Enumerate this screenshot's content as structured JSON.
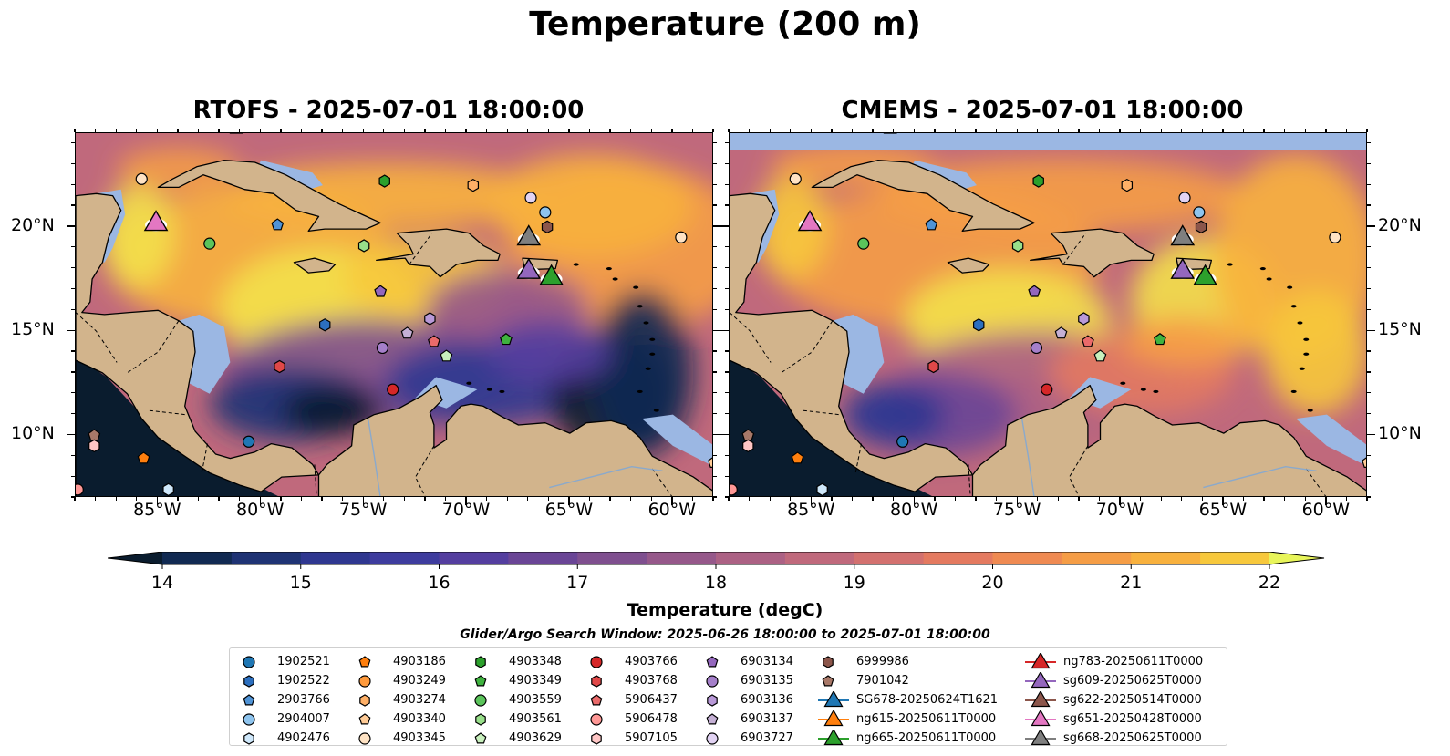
{
  "suptitle": "Temperature (200 m)",
  "panels": [
    {
      "title": "RTOFS - 2025-07-01 18:00:00"
    },
    {
      "title": "CMEMS - 2025-07-01 18:00:00"
    }
  ],
  "map_extent": {
    "lon_min": -89.0,
    "lon_max": -58.0,
    "lat_min": 7.0,
    "lat_max": 24.5
  },
  "x_ticks": [
    {
      "label": "85°W",
      "lon": -85
    },
    {
      "label": "80°W",
      "lon": -80
    },
    {
      "label": "75°W",
      "lon": -75
    },
    {
      "label": "70°W",
      "lon": -70
    },
    {
      "label": "65°W",
      "lon": -65
    },
    {
      "label": "60°W",
      "lon": -60
    }
  ],
  "y_ticks": [
    {
      "label": "20°N",
      "lat": 20
    },
    {
      "label": "15°N",
      "lat": 15
    },
    {
      "label": "10°N",
      "lat": 10
    }
  ],
  "colors": {
    "land": "#d2b48c",
    "shallow": "#9bb7e3",
    "colormap": [
      "#0a1c2e",
      "#112a52",
      "#1f3374",
      "#2f3790",
      "#3e3c9e",
      "#543e9f",
      "#6a4596",
      "#7f4f8f",
      "#96588a",
      "#ac6184",
      "#c0697c",
      "#d3716f",
      "#e47a60",
      "#ef8a52",
      "#f59d46",
      "#f8b13e",
      "#f7c83c",
      "#f3e04a",
      "#e8f55a"
    ]
  },
  "colorbar": {
    "label": "Temperature (degC)",
    "vmin": 14,
    "vmax": 22,
    "step": 0.5,
    "ticks": [
      "14",
      "15",
      "16",
      "17",
      "18",
      "19",
      "20",
      "21",
      "22"
    ]
  },
  "search_window": "Glider/Argo Search Window: 2025-06-26 18:00:00 to 2025-07-01 18:00:00",
  "legend": [
    {
      "label": "1902521",
      "marker": "circle",
      "color": "#1f77b4"
    },
    {
      "label": "1902522",
      "marker": "hexagon",
      "color": "#2c6fbf"
    },
    {
      "label": "2903766",
      "marker": "pentagon",
      "color": "#4f93d6"
    },
    {
      "label": "2904007",
      "marker": "circle",
      "color": "#8ec4ee"
    },
    {
      "label": "4902476",
      "marker": "hexagon",
      "color": "#cfe8fb"
    },
    {
      "label": "4903186",
      "marker": "pentagon",
      "color": "#ff7f0e"
    },
    {
      "label": "4903249",
      "marker": "circle",
      "color": "#ff9a3c"
    },
    {
      "label": "4903274",
      "marker": "hexagon",
      "color": "#ffb067"
    },
    {
      "label": "4903340",
      "marker": "pentagon",
      "color": "#ffcb96"
    },
    {
      "label": "4903345",
      "marker": "circle",
      "color": "#ffe3c4"
    },
    {
      "label": "4903348",
      "marker": "hexagon",
      "color": "#2ca02c"
    },
    {
      "label": "4903349",
      "marker": "pentagon",
      "color": "#3fb23f"
    },
    {
      "label": "4903559",
      "marker": "circle",
      "color": "#5bc45b"
    },
    {
      "label": "4903561",
      "marker": "hexagon",
      "color": "#98df8a"
    },
    {
      "label": "4903629",
      "marker": "pentagon",
      "color": "#c8f0bd"
    },
    {
      "label": "4903766",
      "marker": "circle",
      "color": "#d62728"
    },
    {
      "label": "4903768",
      "marker": "hexagon",
      "color": "#e04848"
    },
    {
      "label": "5906437",
      "marker": "pentagon",
      "color": "#ea6a6a"
    },
    {
      "label": "5906478",
      "marker": "circle",
      "color": "#ff9896"
    },
    {
      "label": "5907105",
      "marker": "hexagon",
      "color": "#ffc6c5"
    },
    {
      "label": "6903134",
      "marker": "pentagon",
      "color": "#9467bd"
    },
    {
      "label": "6903135",
      "marker": "circle",
      "color": "#a57fca"
    },
    {
      "label": "6903136",
      "marker": "hexagon",
      "color": "#b999d8"
    },
    {
      "label": "6903137",
      "marker": "pentagon",
      "color": "#c5b0d5"
    },
    {
      "label": "6903727",
      "marker": "circle",
      "color": "#e2d3f3"
    },
    {
      "label": "6999986",
      "marker": "hexagon",
      "color": "#8c564b"
    },
    {
      "label": "7901042",
      "marker": "pentagon",
      "color": "#a87868"
    },
    {
      "label": "SG678-20250624T1621",
      "marker": "triangle",
      "color": "#1f77b4"
    },
    {
      "label": "ng615-20250611T0000",
      "marker": "triangle",
      "color": "#ff7f0e"
    },
    {
      "label": "ng665-20250611T0000",
      "marker": "triangle",
      "color": "#2ca02c"
    },
    {
      "label": "ng783-20250611T0000",
      "marker": "triangle",
      "color": "#d62728"
    },
    {
      "label": "sg609-20250625T0000",
      "marker": "triangle",
      "color": "#9467bd"
    },
    {
      "label": "sg622-20250514T0000",
      "marker": "triangle",
      "color": "#8c564b"
    },
    {
      "label": "sg651-20250428T0000",
      "marker": "triangle",
      "color": "#e377c2"
    },
    {
      "label": "sg668-20250625T0000",
      "marker": "triangle",
      "color": "#7f7f7f"
    }
  ],
  "observations": [
    {
      "label": "2903766",
      "lon": -79.2,
      "lat": 20.1
    },
    {
      "label": "4903348",
      "lon": -74.0,
      "lat": 22.2
    },
    {
      "label": "4903559",
      "lon": -82.5,
      "lat": 19.2
    },
    {
      "label": "4903274",
      "lon": -69.7,
      "lat": 22.0
    },
    {
      "label": "4903345",
      "lon": -85.8,
      "lat": 22.3
    },
    {
      "label": "6903727",
      "lon": -66.9,
      "lat": 21.4
    },
    {
      "label": "2904007",
      "lon": -66.2,
      "lat": 20.7
    },
    {
      "label": "6999986",
      "lon": -66.1,
      "lat": 20.0
    },
    {
      "label": "4903561",
      "lon": -75.0,
      "lat": 19.1
    },
    {
      "label": "4903345",
      "lon": -59.6,
      "lat": 19.5
    },
    {
      "label": "6903134",
      "lon": -74.2,
      "lat": 16.9
    },
    {
      "label": "1902522",
      "lon": -76.9,
      "lat": 15.3
    },
    {
      "label": "6903136",
      "lon": -71.8,
      "lat": 15.6
    },
    {
      "label": "6903137",
      "lon": -72.9,
      "lat": 14.9
    },
    {
      "label": "6903135",
      "lon": -74.1,
      "lat": 14.2
    },
    {
      "label": "5906437",
      "lon": -71.6,
      "lat": 14.5
    },
    {
      "label": "4903349",
      "lon": -68.1,
      "lat": 14.6
    },
    {
      "label": "4903629",
      "lon": -71.0,
      "lat": 13.8
    },
    {
      "label": "4903768",
      "lon": -79.1,
      "lat": 13.3
    },
    {
      "label": "4903766",
      "lon": -73.6,
      "lat": 12.2
    },
    {
      "label": "1902521",
      "lon": -80.6,
      "lat": 9.7
    },
    {
      "label": "7901042",
      "lon": -88.1,
      "lat": 10.0
    },
    {
      "label": "5907105",
      "lon": -88.1,
      "lat": 9.5
    },
    {
      "label": "4903186",
      "lon": -85.7,
      "lat": 8.9
    },
    {
      "label": "5906478",
      "lon": -88.9,
      "lat": 7.4
    },
    {
      "label": "4902476",
      "lon": -84.5,
      "lat": 7.4
    },
    {
      "label": "4903340",
      "lon": -58.0,
      "lat": 8.7
    }
  ],
  "gliders": [
    {
      "label": "sg651-20250428T0000",
      "lon": -85.1,
      "lat": 20.1
    },
    {
      "label": "sg668-20250625T0000",
      "lon": -67.0,
      "lat": 19.4
    },
    {
      "label": "sg609-20250625T0000",
      "lon": -67.0,
      "lat": 17.8
    },
    {
      "label": "ng665-20250611T0000",
      "lon": -65.9,
      "lat": 17.5
    }
  ]
}
